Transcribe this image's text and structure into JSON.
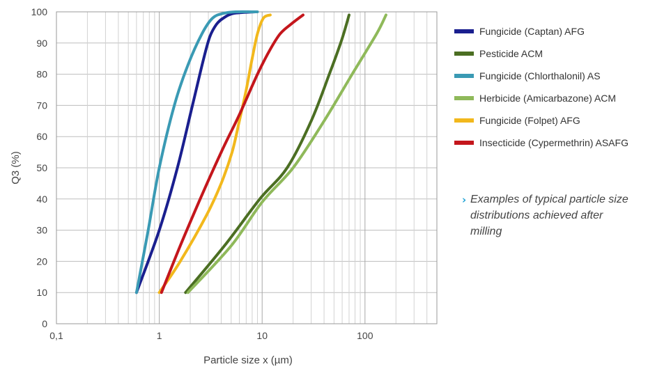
{
  "chart_data": {
    "type": "line",
    "title": "",
    "xlabel": "Particle size x (µm)",
    "ylabel": "Q3 (%)",
    "xscale": "log",
    "xlim": [
      0.1,
      500
    ],
    "ylim": [
      0,
      100
    ],
    "xticks": [
      0.1,
      1,
      10,
      100
    ],
    "xtick_labels": [
      "0,1",
      "1",
      "10",
      "100"
    ],
    "yticks": [
      0,
      10,
      20,
      30,
      40,
      50,
      60,
      70,
      80,
      90,
      100
    ],
    "ytick_labels": [
      "0",
      "10",
      "20",
      "30",
      "40",
      "50",
      "60",
      "70",
      "80",
      "90",
      "100"
    ],
    "grid": true,
    "legend_position": "right",
    "series": [
      {
        "name": "Fungicide (Captan) AFG",
        "color": "#1a1f8f",
        "x": [
          0.6,
          1.0,
          1.5,
          2.1,
          2.7,
          3.1,
          3.6,
          4.2,
          5.3,
          8.5
        ],
        "y": [
          10,
          30,
          50,
          70,
          85,
          92,
          96,
          98,
          99.5,
          100
        ]
      },
      {
        "name": "Pesticide ACM",
        "color": "#4b6e22",
        "x": [
          1.8,
          4.3,
          9.5,
          17.5,
          30,
          45,
          58,
          66,
          70
        ],
        "y": [
          10,
          25,
          40,
          50,
          65,
          80,
          90,
          96,
          99
        ]
      },
      {
        "name": "Fungicide (Chlorthalonil) AS",
        "color": "#3a9ab4",
        "x": [
          0.6,
          0.78,
          1.0,
          1.4,
          1.9,
          2.6,
          3.3,
          4.2,
          5.6,
          8.0,
          9.0
        ],
        "y": [
          10,
          30,
          50,
          70,
          83,
          93,
          98,
          99.5,
          100,
          100,
          100
        ]
      },
      {
        "name": "Herbicide (Amicarbazone) ACM",
        "color": "#8fb95a",
        "x": [
          1.9,
          5.0,
          10.0,
          20.0,
          40.0,
          75.0,
          130.0,
          160.0
        ],
        "y": [
          10,
          25,
          39,
          50,
          65,
          80,
          93,
          99
        ]
      },
      {
        "name": "Fungicide (Folpet) AFG",
        "color": "#f2b81c",
        "x": [
          1.0,
          1.6,
          2.9,
          4.0,
          5.1,
          6.0,
          7.0,
          8.0,
          9.0,
          10.3,
          12.0
        ],
        "y": [
          10,
          20,
          35,
          45,
          55,
          65,
          75,
          85,
          93,
          98,
          99
        ]
      },
      {
        "name": "Insecticide (Cypermethrin) ASAFG",
        "color": "#c4161c",
        "x": [
          1.05,
          1.6,
          2.5,
          4.0,
          6.0,
          9.0,
          12.0,
          15.0,
          19.0,
          25.0
        ],
        "y": [
          10,
          25,
          40,
          55,
          67,
          80,
          88,
          93,
          96,
          99
        ]
      }
    ]
  },
  "note": {
    "arrow": "›",
    "text": "Examples of typical particle size distributions achieved after milling"
  }
}
